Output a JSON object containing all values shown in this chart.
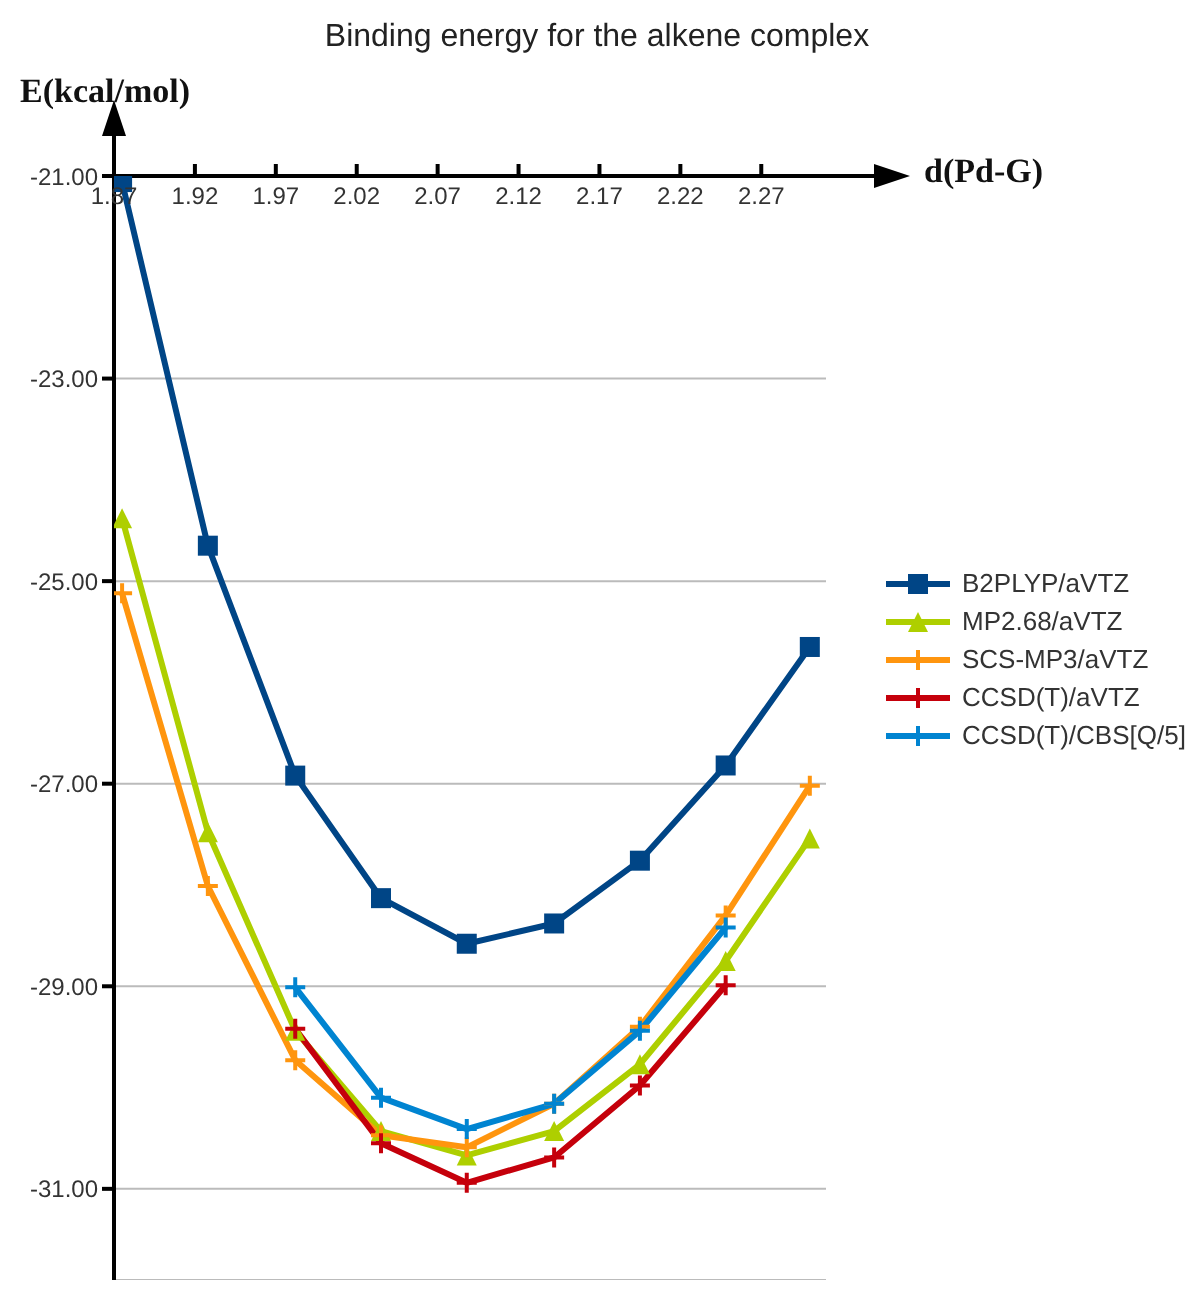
{
  "chart_data": {
    "type": "line",
    "title": "Binding energy for the alkene complex",
    "xlabel": "d(Pd-G)",
    "ylabel": "E(kcal/mol)",
    "x": [
      1.875,
      1.928,
      1.982,
      2.035,
      2.088,
      2.142,
      2.195,
      2.248,
      2.3
    ],
    "xlim": [
      1.87,
      2.31
    ],
    "xticks": [
      1.87,
      1.92,
      1.97,
      2.02,
      2.07,
      2.12,
      2.17,
      2.22,
      2.27
    ],
    "ylim": [
      -31.9,
      -21
    ],
    "yticks": [
      {
        "value": -21,
        "label": "-21.00"
      },
      {
        "value": -23,
        "label": "-23.00"
      },
      {
        "value": -25,
        "label": "-25.00"
      },
      {
        "value": -27,
        "label": "-27.00"
      },
      {
        "value": -29,
        "label": "-29.00"
      },
      {
        "value": -31,
        "label": "-31.00"
      }
    ],
    "grid": "y",
    "legend": "right",
    "series": [
      {
        "name": "B2PLYP/aVTZ",
        "color": "#004586",
        "marker": "square",
        "values": [
          -21.06,
          -24.65,
          -26.92,
          -28.13,
          -28.58,
          -28.38,
          -27.76,
          -26.82,
          -25.65
        ]
      },
      {
        "name": "MP2.68/aVTZ",
        "color": "#aecf00",
        "marker": "triangle",
        "values": [
          -24.38,
          -27.48,
          -29.44,
          -30.43,
          -30.67,
          -30.43,
          -29.77,
          -28.75,
          -27.54
        ]
      },
      {
        "name": "SCS-MP3/aVTZ",
        "color": "#ff950e",
        "marker": "cross",
        "values": [
          -25.12,
          -28.01,
          -29.73,
          -30.47,
          -30.59,
          -30.16,
          -29.4,
          -28.3,
          -27.02
        ]
      },
      {
        "name": "CCSD(T)/aVTZ",
        "color": "#c5000b",
        "marker": "cross",
        "values": [
          null,
          null,
          -29.42,
          -30.55,
          -30.94,
          -30.69,
          -29.98,
          -28.99,
          null
        ]
      },
      {
        "name": "CCSD(T)/CBS[Q/5]",
        "color": "#0084d1",
        "marker": "cross",
        "values": [
          null,
          null,
          -29.01,
          -30.1,
          -30.41,
          -30.16,
          -29.44,
          -28.42,
          null
        ]
      }
    ]
  }
}
